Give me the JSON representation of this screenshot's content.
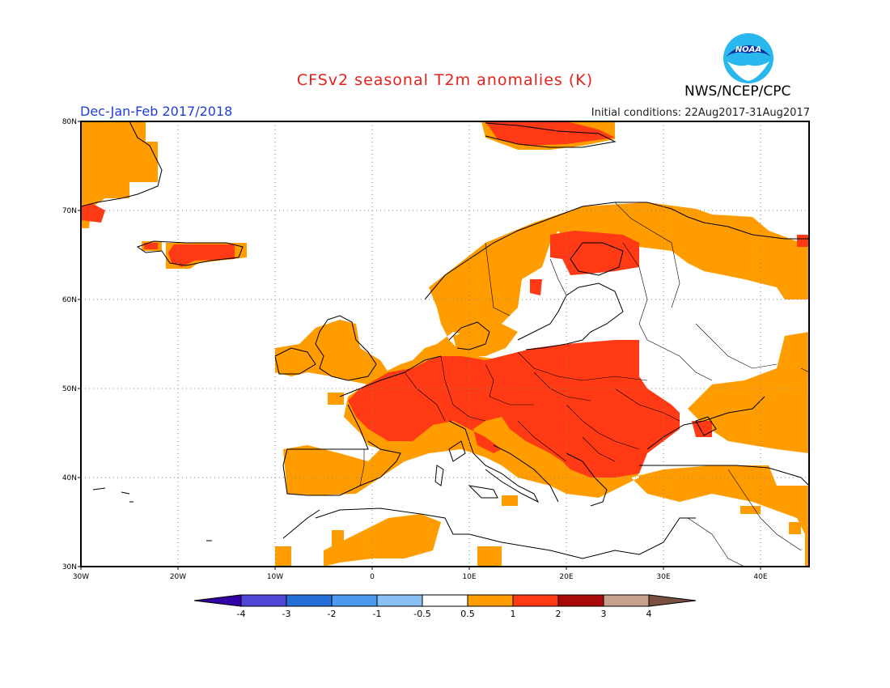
{
  "header": {
    "title": "CFSv2 seasonal T2m anomalies (K)",
    "season": "Dec-Jan-Feb 2017/2018",
    "initial_conditions": "Initial conditions: 22Aug2017-31Aug2017",
    "agency": "NWS/NCEP/CPC",
    "logo_text": "NOAA"
  },
  "map": {
    "region": "Europe",
    "lon_range": [
      -30,
      45
    ],
    "lat_range": [
      30,
      80
    ],
    "lon_ticks": [
      "30W",
      "20W",
      "10W",
      "0",
      "10E",
      "20E",
      "30E",
      "40E"
    ],
    "lat_ticks": [
      "30N",
      "40N",
      "50N",
      "60N",
      "70N",
      "80N"
    ],
    "grid": "dotted"
  },
  "legend": {
    "ticks": [
      "-4",
      "-3",
      "-2",
      "-1",
      "-0.5",
      "0.5",
      "1",
      "2",
      "3",
      "4"
    ],
    "colors": [
      "#3300a8",
      "#5046d6",
      "#2470d8",
      "#4a98f0",
      "#88c0f4",
      "#ffffff",
      "#ff9c00",
      "#ff3a14",
      "#a80a0a",
      "#c8a090",
      "#7a5040"
    ]
  }
}
